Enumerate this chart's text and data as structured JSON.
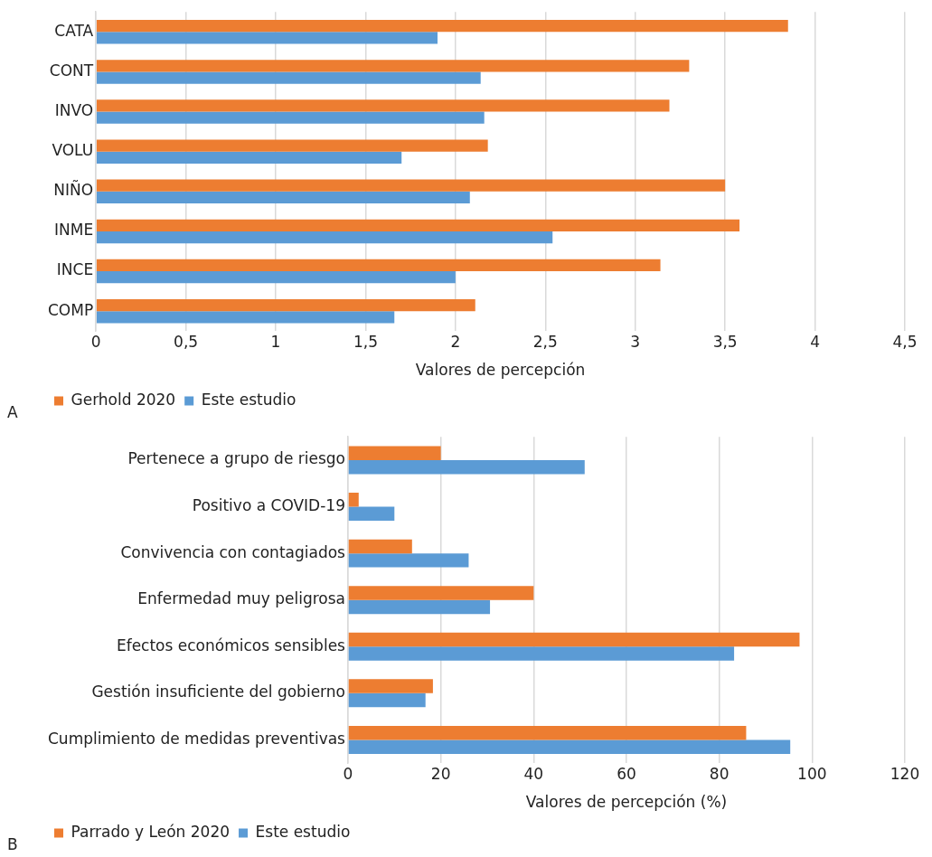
{
  "chart_data": [
    {
      "type": "bar",
      "orientation": "horizontal",
      "xlabel": "Valores de percepción",
      "categories": [
        "CATA",
        "CONT",
        "INVO",
        "VOLU",
        "NIÑO",
        "INME",
        "INCE",
        "COMP"
      ],
      "series": [
        {
          "name": "Gerhold 2020",
          "color": "#ed7d31",
          "values": [
            3.85,
            3.3,
            3.19,
            2.18,
            3.5,
            3.58,
            3.14,
            2.11
          ]
        },
        {
          "name": "Este estudio",
          "color": "#5b9bd5",
          "values": [
            1.9,
            2.14,
            2.16,
            1.7,
            2.08,
            2.54,
            2.0,
            1.66
          ]
        }
      ],
      "xlim": [
        0,
        4.5
      ],
      "xticks": [
        0,
        {
          "value": 0.5,
          "label": "0,5"
        },
        1,
        {
          "value": 1.5,
          "label": "1,5"
        },
        2,
        {
          "value": 2.5,
          "label": "2,5"
        },
        3,
        {
          "value": 3.5,
          "label": "3,5"
        },
        4,
        {
          "value": 4.5,
          "label": "4,5"
        }
      ],
      "grid": "x",
      "legend": "bottom left",
      "annotations": [
        "A"
      ]
    },
    {
      "type": "bar",
      "orientation": "horizontal",
      "xlabel": "Valores de percepción (%)",
      "categories": [
        "Pertenece a grupo de riesgo",
        "Positivo a COVID-19",
        "Convivencia con contagiados",
        "Enfermedad muy peligrosa",
        "Efectos económicos sensibles",
        "Gestión insuficiente del gobierno",
        "Cumplimiento de medidas preventivas"
      ],
      "series": [
        {
          "name": "Parrado y León 2020",
          "color": "#ed7d31",
          "values": [
            20,
            2.3,
            13.8,
            40,
            97.3,
            18.3,
            85.8
          ]
        },
        {
          "name": "Este estudio",
          "color": "#5b9bd5",
          "values": [
            51,
            10,
            26,
            30.6,
            83.2,
            16.7,
            95.3
          ]
        }
      ],
      "xlim": [
        0,
        120
      ],
      "xticks": [
        0,
        20,
        40,
        60,
        80,
        100,
        120
      ],
      "grid": "x",
      "legend": "bottom left",
      "annotations": [
        "B"
      ]
    }
  ]
}
